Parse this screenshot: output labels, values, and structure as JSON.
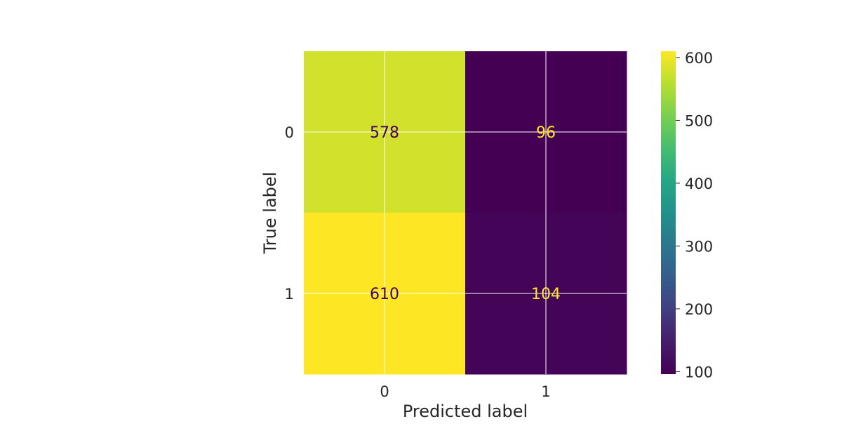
{
  "chart_data": {
    "type": "heatmap",
    "title": "",
    "xlabel": "Predicted label",
    "ylabel": "True label",
    "x_categories": [
      "0",
      "1"
    ],
    "y_categories": [
      "0",
      "1"
    ],
    "values": [
      [
        578,
        96
      ],
      [
        610,
        104
      ]
    ],
    "value_labels": [
      [
        "578",
        "96"
      ],
      [
        "610",
        "104"
      ]
    ],
    "colormap": "viridis",
    "colorbar": {
      "min": 96,
      "max": 610,
      "ticks": [
        100,
        200,
        300,
        400,
        500,
        600
      ],
      "tick_labels": [
        "100",
        "200",
        "300",
        "400",
        "500",
        "600"
      ]
    },
    "grid": true,
    "colors": {
      "low": "#440154",
      "high": "#fde725",
      "text_on_light": "#440154",
      "text_on_dark": "#fde725",
      "grid": "#ffffff",
      "axis_text": "#262626"
    }
  }
}
